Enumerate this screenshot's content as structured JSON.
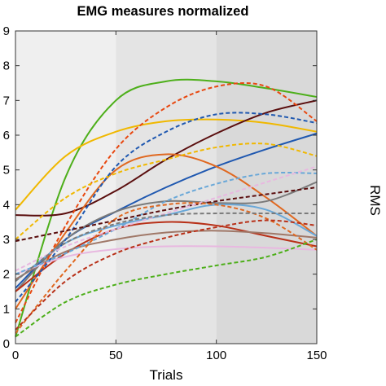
{
  "chart_data": {
    "type": "line",
    "title": "EMG measures normalized",
    "xlabel": "Trials",
    "ylabel": "RMS",
    "xlim": [
      0,
      150
    ],
    "ylim": [
      0,
      0.9
    ],
    "xticks": [
      0,
      50,
      100,
      150
    ],
    "xtick_labels": [
      "0",
      "50",
      "100",
      "150"
    ],
    "yticks": [
      0,
      0.1,
      0.2,
      0.3,
      0.4,
      0.5,
      0.6,
      0.7,
      0.8,
      0.9
    ],
    "ytick_labels": [
      "0",
      "1",
      "2",
      "3",
      "4",
      "5",
      "6",
      "7",
      "8",
      "9"
    ],
    "grid": false,
    "legend": "none",
    "background_bands": [
      {
        "x": [
          0,
          50
        ],
        "color": "#efefef"
      },
      {
        "x": [
          50,
          100
        ],
        "color": "#e4e4e4"
      },
      {
        "x": [
          100,
          150
        ],
        "color": "#d9d9d9"
      }
    ],
    "series": [
      {
        "color": "#4daf1a",
        "style": "solid",
        "x": [
          0,
          25,
          50,
          75,
          100,
          125,
          150
        ],
        "y": [
          0.02,
          0.48,
          0.7,
          0.755,
          0.755,
          0.735,
          0.71
        ]
      },
      {
        "color": "#f0b800",
        "style": "solid",
        "x": [
          0,
          25,
          50,
          75,
          100,
          125,
          150
        ],
        "y": [
          0.385,
          0.54,
          0.61,
          0.64,
          0.645,
          0.635,
          0.61
        ]
      },
      {
        "color": "#5a0e0e",
        "style": "solid",
        "x": [
          0,
          25,
          50,
          75,
          100,
          125,
          150
        ],
        "y": [
          0.37,
          0.375,
          0.44,
          0.53,
          0.605,
          0.665,
          0.7
        ]
      },
      {
        "color": "#1f58b0",
        "style": "solid",
        "x": [
          0,
          25,
          50,
          75,
          100,
          125,
          150
        ],
        "y": [
          0.16,
          0.3,
          0.38,
          0.45,
          0.51,
          0.56,
          0.605
        ]
      },
      {
        "color": "#e06820",
        "style": "solid",
        "x": [
          0,
          25,
          50,
          75,
          100,
          125,
          150
        ],
        "y": [
          0.1,
          0.32,
          0.5,
          0.545,
          0.51,
          0.42,
          0.31
        ]
      },
      {
        "color": "#7a7a7a",
        "style": "solid",
        "x": [
          0,
          25,
          50,
          75,
          100,
          125,
          150
        ],
        "y": [
          0.15,
          0.3,
          0.38,
          0.41,
          0.405,
          0.41,
          0.465
        ]
      },
      {
        "color": "#6aa8d8",
        "style": "solid",
        "x": [
          0,
          25,
          50,
          75,
          100,
          125,
          150
        ],
        "y": [
          0.18,
          0.29,
          0.34,
          0.37,
          0.4,
          0.385,
          0.31
        ]
      },
      {
        "color": "#b83018",
        "style": "solid",
        "x": [
          0,
          25,
          50,
          75,
          100,
          125,
          150
        ],
        "y": [
          0.15,
          0.26,
          0.33,
          0.35,
          0.34,
          0.31,
          0.28
        ]
      },
      {
        "color": "#a07868",
        "style": "solid",
        "x": [
          0,
          25,
          50,
          75,
          100,
          125,
          150
        ],
        "y": [
          0.185,
          0.265,
          0.3,
          0.32,
          0.325,
          0.318,
          0.305
        ]
      },
      {
        "color": "#e8b8e0",
        "style": "solid",
        "x": [
          0,
          25,
          50,
          75,
          100,
          125,
          150
        ],
        "y": [
          0.2,
          0.25,
          0.272,
          0.28,
          0.28,
          0.276,
          0.27
        ]
      },
      {
        "color": "#e84810",
        "style": "dashed",
        "x": [
          0,
          25,
          50,
          75,
          100,
          125,
          150
        ],
        "y": [
          0.06,
          0.34,
          0.56,
          0.68,
          0.74,
          0.74,
          0.64
        ]
      },
      {
        "color": "#f0b800",
        "style": "dashed",
        "x": [
          0,
          25,
          50,
          75,
          100,
          125,
          150
        ],
        "y": [
          0.3,
          0.42,
          0.49,
          0.53,
          0.565,
          0.575,
          0.54
        ]
      },
      {
        "color": "#1f58b0",
        "style": "dashed",
        "x": [
          0,
          25,
          50,
          75,
          100,
          125,
          150
        ],
        "y": [
          0.12,
          0.3,
          0.51,
          0.61,
          0.66,
          0.66,
          0.635
        ]
      },
      {
        "color": "#6aa8d8",
        "style": "dashed",
        "x": [
          0,
          25,
          50,
          75,
          100,
          125,
          150
        ],
        "y": [
          0.2,
          0.26,
          0.33,
          0.41,
          0.46,
          0.49,
          0.49
        ]
      },
      {
        "color": "#5a0e0e",
        "style": "dashed",
        "x": [
          0,
          25,
          50,
          75,
          100,
          125,
          150
        ],
        "y": [
          0.295,
          0.325,
          0.355,
          0.385,
          0.41,
          0.43,
          0.45
        ]
      },
      {
        "color": "#e8b8e0",
        "style": "dashed",
        "x": [
          0,
          25,
          50,
          75,
          100,
          125,
          150
        ],
        "y": [
          0.21,
          0.28,
          0.33,
          0.375,
          0.42,
          0.465,
          0.51
        ]
      },
      {
        "color": "#e06820",
        "style": "dashed",
        "x": [
          0,
          25,
          50,
          75,
          100,
          125,
          150
        ],
        "y": [
          0.03,
          0.21,
          0.36,
          0.4,
          0.4,
          0.36,
          0.27
        ]
      },
      {
        "color": "#7a7a7a",
        "style": "dashed",
        "x": [
          0,
          25,
          50,
          75,
          100,
          125,
          150
        ],
        "y": [
          0.18,
          0.29,
          0.345,
          0.37,
          0.375,
          0.375,
          0.375
        ]
      },
      {
        "color": "#b83018",
        "style": "dashed",
        "x": [
          0,
          25,
          50,
          75,
          100,
          125,
          150
        ],
        "y": [
          0.04,
          0.18,
          0.26,
          0.305,
          0.335,
          0.355,
          0.34
        ]
      },
      {
        "color": "#4daf1a",
        "style": "dashed",
        "x": [
          0,
          25,
          50,
          75,
          100,
          125,
          150
        ],
        "y": [
          0.02,
          0.12,
          0.17,
          0.2,
          0.225,
          0.25,
          0.3
        ]
      }
    ]
  }
}
